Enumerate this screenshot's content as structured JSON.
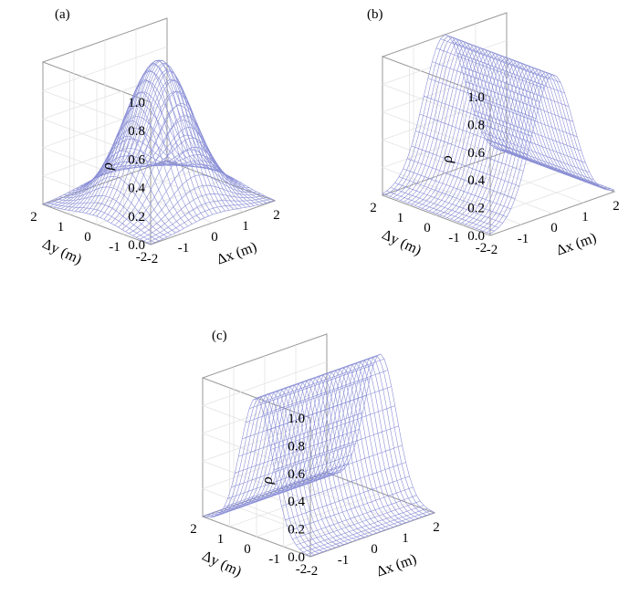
{
  "chart_data": [
    {
      "panel_label": "(a)",
      "type": "surface",
      "surface_shape": "2D gaussian peak centered at origin",
      "x": [
        -2,
        -1,
        0,
        1,
        2
      ],
      "y": [
        -2,
        -1,
        0,
        1,
        2
      ],
      "peak_value": 1.0,
      "approx_values": {
        "center": 1.0,
        "at_edges": 0.0
      },
      "xlabel": "Δx (m)",
      "ylabel": "Δy (m)",
      "zlabel": "ρ",
      "xticks": [
        "-2",
        "-1",
        "0",
        "1",
        "2"
      ],
      "yticks": [
        "-2",
        "-1",
        "0",
        "1",
        "2"
      ],
      "zticks": [
        "0.0",
        "0.2",
        "0.4",
        "0.6",
        "0.8",
        "1.0"
      ],
      "zlim": [
        0,
        1
      ],
      "grid": true
    },
    {
      "panel_label": "(b)",
      "type": "surface",
      "surface_shape": "ridge along Δy, gaussian in Δx",
      "x": [
        -2,
        -1,
        0,
        1,
        2
      ],
      "y": [
        -2,
        -1,
        0,
        1,
        2
      ],
      "peak_value": 1.0,
      "xlabel": "Δx (m)",
      "ylabel": "Δy (m)",
      "zlabel": "ρ",
      "xticks": [
        "-2",
        "-1",
        "0",
        "1",
        "2"
      ],
      "yticks": [
        "-2",
        "-1",
        "0",
        "1",
        "2"
      ],
      "zticks": [
        "0.0",
        "0.2",
        "0.4",
        "0.6",
        "0.8",
        "1.0"
      ],
      "zlim": [
        0,
        1
      ],
      "grid": true
    },
    {
      "panel_label": "(c)",
      "type": "surface",
      "surface_shape": "ridge along Δx, gaussian in Δy",
      "x": [
        -2,
        -1,
        0,
        1,
        2
      ],
      "y": [
        -2,
        -1,
        0,
        1,
        2
      ],
      "peak_value": 1.0,
      "xlabel": "Δx (m)",
      "ylabel": "Δy (m)",
      "zlabel": "ρ",
      "xticks": [
        "-2",
        "-1",
        "0",
        "1",
        "2"
      ],
      "yticks": [
        "-2",
        "-1",
        "0",
        "1",
        "2"
      ],
      "zticks": [
        "0.0",
        "0.2",
        "0.4",
        "0.6",
        "0.8",
        "1.0"
      ],
      "zlim": [
        0,
        1
      ],
      "grid": true
    }
  ],
  "colors": {
    "mesh": "#8a8fd6",
    "box": "#9a9a9a",
    "grid": "#e3e3e3"
  }
}
